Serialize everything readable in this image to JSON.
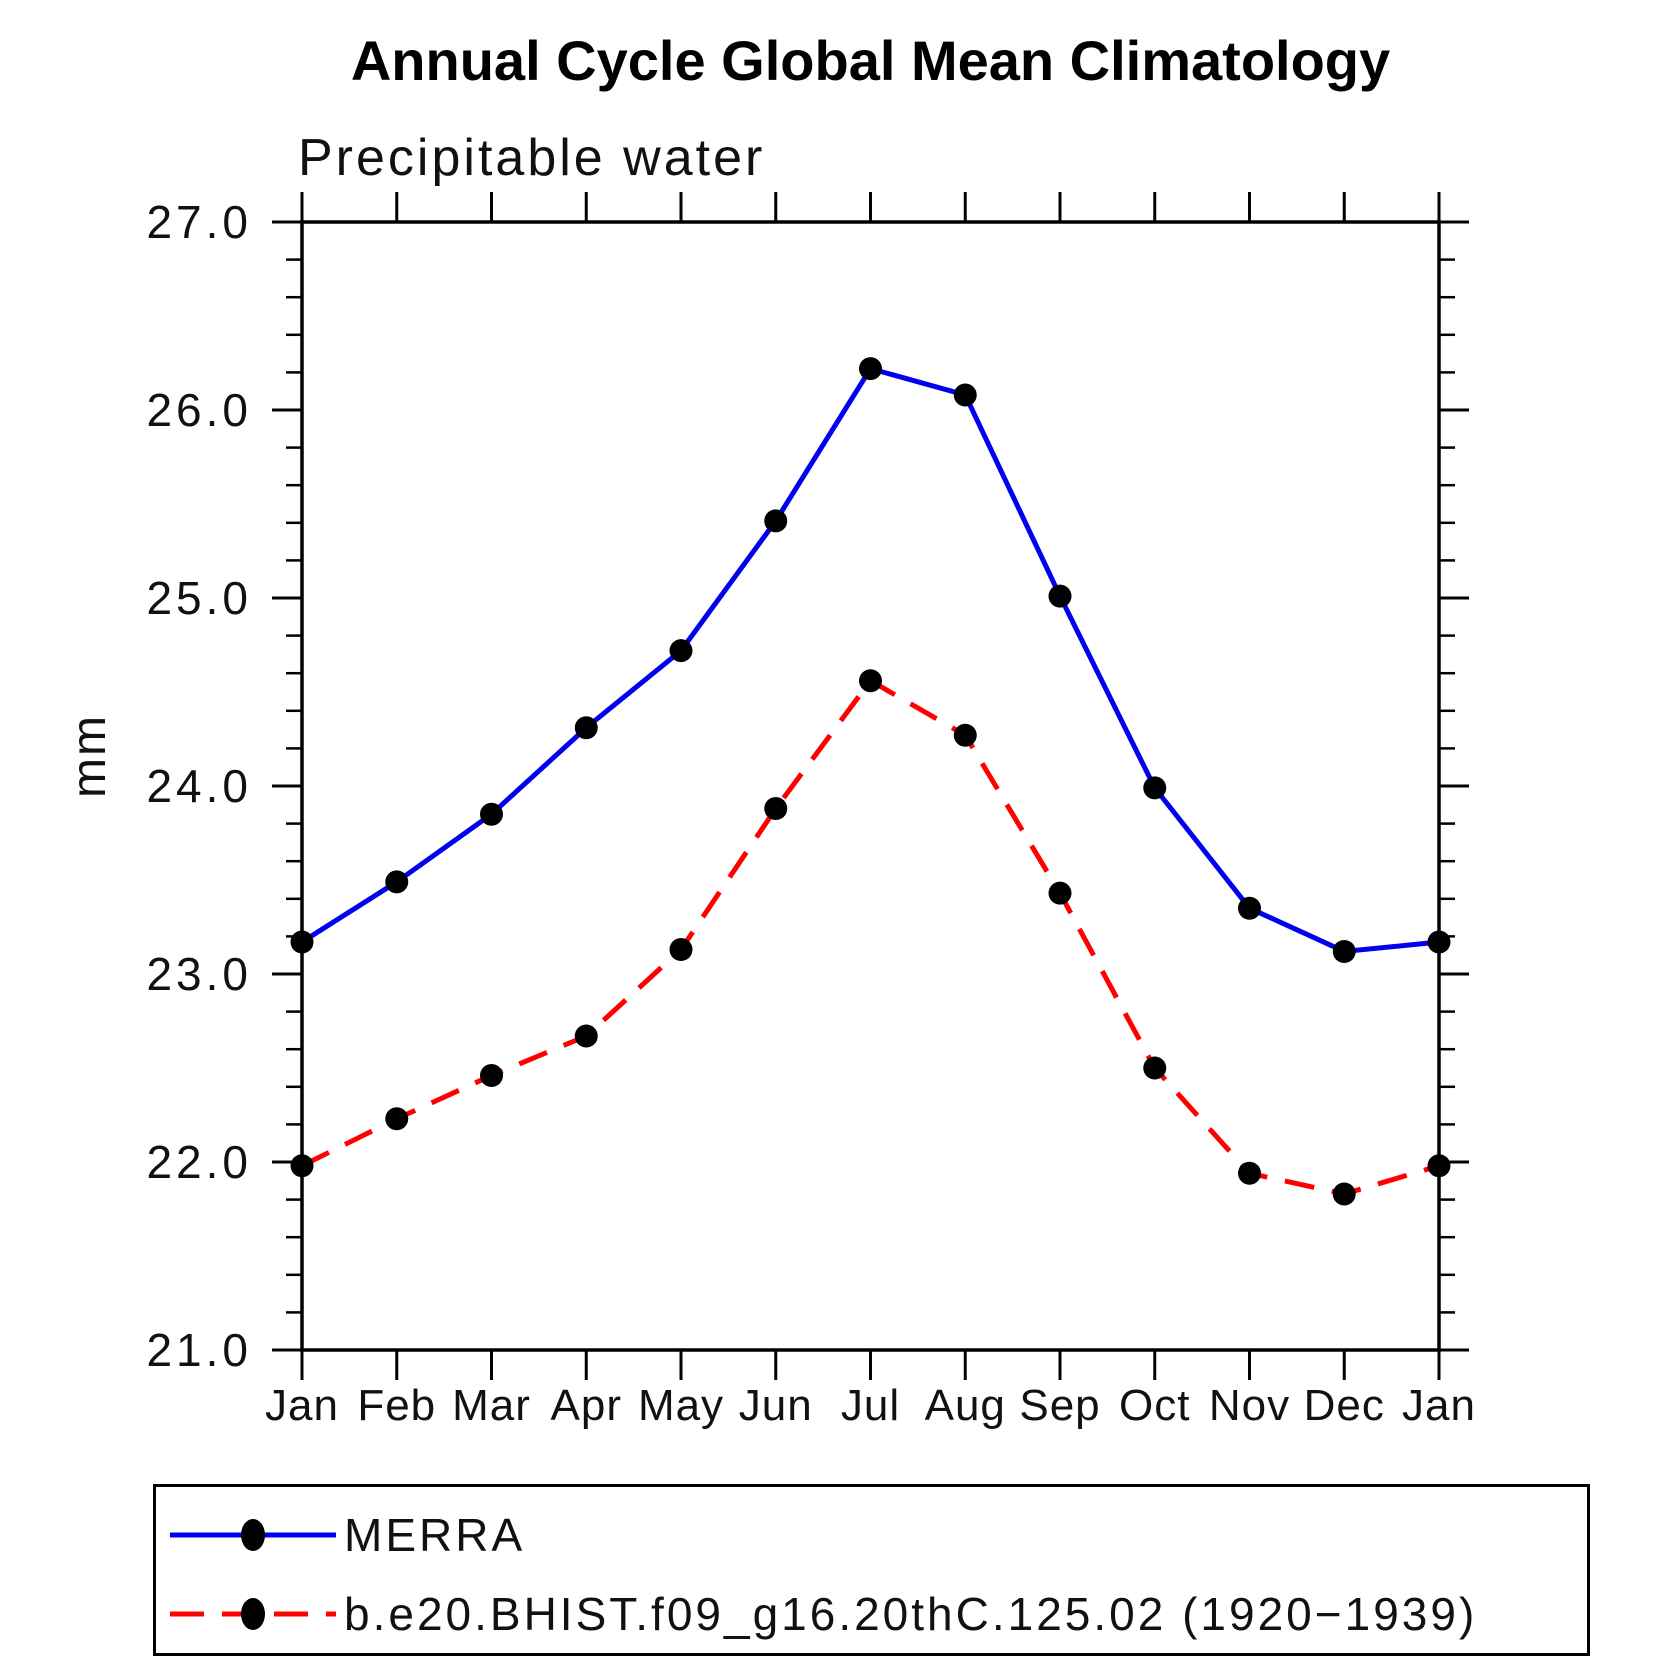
{
  "title": "Annual Cycle Global Mean Climatology",
  "subtitle": "Precipitable water",
  "y_axis": {
    "label": "mm",
    "tick_labels": [
      "21.0",
      "22.0",
      "23.0",
      "24.0",
      "25.0",
      "26.0",
      "27.0"
    ]
  },
  "x_axis": {
    "tick_labels": [
      "Jan",
      "Feb",
      "Mar",
      "Apr",
      "May",
      "Jun",
      "Jul",
      "Aug",
      "Sep",
      "Oct",
      "Nov",
      "Dec",
      "Jan"
    ]
  },
  "colors": {
    "merra_line": "#0000ee",
    "model_line": "#ff0000",
    "marker": "#000000",
    "axis": "#000000"
  },
  "chart_data": {
    "type": "line",
    "title": "Annual Cycle Global Mean Climatology",
    "subtitle": "Precipitable water",
    "ylabel": "mm",
    "ylim": [
      21.0,
      27.0
    ],
    "y_major_step": 1.0,
    "y_minor_step": 0.2,
    "grid": false,
    "legend_position": "bottom",
    "categories": [
      "Jan",
      "Feb",
      "Mar",
      "Apr",
      "May",
      "Jun",
      "Jul",
      "Aug",
      "Sep",
      "Oct",
      "Nov",
      "Dec",
      "Jan"
    ],
    "series": [
      {
        "name": "MERRA",
        "color": "#0000ee",
        "line_style": "solid",
        "marker": "filled-circle",
        "marker_color": "#000000",
        "values": [
          23.17,
          23.49,
          23.85,
          24.31,
          24.72,
          25.41,
          26.22,
          26.08,
          25.01,
          23.99,
          23.35,
          23.12,
          23.17
        ]
      },
      {
        "name": "b.e20.BHIST.f09_g16.20thC.125.02 (1920−1939)",
        "color": "#ff0000",
        "line_style": "dashed",
        "marker": "filled-circle",
        "marker_color": "#000000",
        "values": [
          21.98,
          22.23,
          22.46,
          22.67,
          23.13,
          23.88,
          24.56,
          24.27,
          23.43,
          22.5,
          21.94,
          21.83,
          21.98
        ]
      }
    ]
  }
}
